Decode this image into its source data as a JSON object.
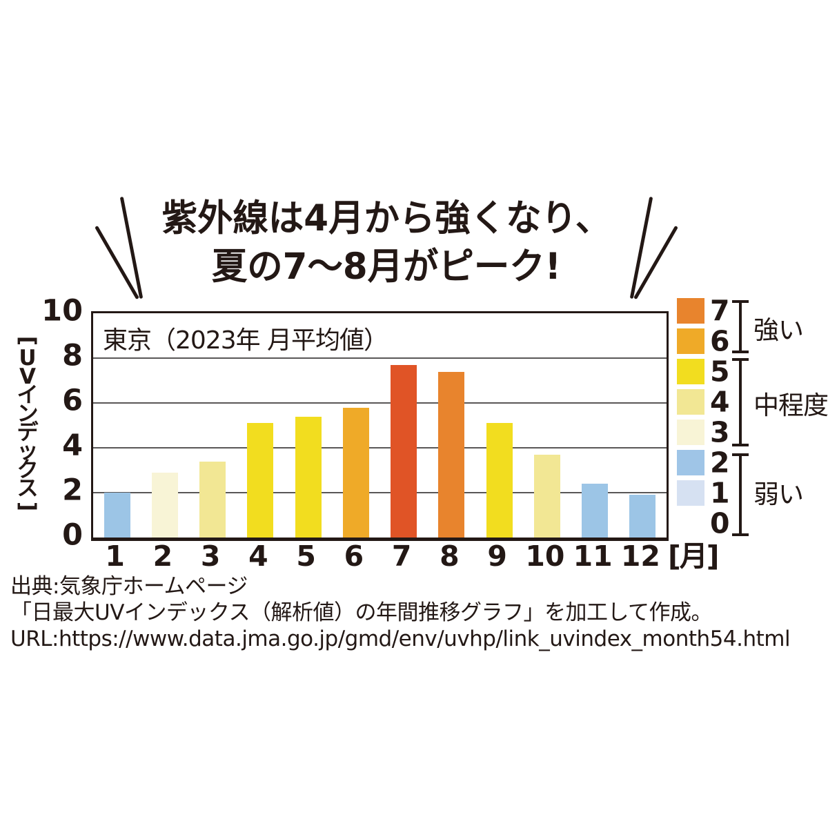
{
  "title": {
    "line1": "紫外線は4月から強くなり、",
    "line2": "夏の7〜8月がピーク!"
  },
  "chart_data": {
    "type": "bar",
    "title": "東京（2023年 月平均値）",
    "categories": [
      "1",
      "2",
      "3",
      "4",
      "5",
      "6",
      "7",
      "8",
      "9",
      "10",
      "11",
      "12"
    ],
    "values": [
      2.0,
      2.9,
      3.4,
      5.1,
      5.4,
      5.8,
      7.7,
      7.4,
      5.1,
      3.7,
      2.4,
      1.9
    ],
    "bar_colors": [
      "#9cc5e6",
      "#f8f4d6",
      "#f2e794",
      "#f2dd1f",
      "#f2dd1f",
      "#efaa28",
      "#e05426",
      "#e8842d",
      "#f2dd1f",
      "#f2e794",
      "#9cc5e6",
      "#9cc5e6"
    ],
    "xlabel": "[月]",
    "ylabel": "[UVインデックス]",
    "ylim": [
      0,
      10
    ],
    "yticks": [
      0,
      2,
      4,
      6,
      8,
      10
    ],
    "grid": true,
    "legend_position": "right"
  },
  "axes": {
    "y_ticks_display": [
      "10",
      "8",
      "6",
      "4",
      "2",
      "0"
    ],
    "x_unit_label": "[月]"
  },
  "legend": {
    "entries": [
      {
        "value": "7",
        "color": "#e8842d"
      },
      {
        "value": "6",
        "color": "#efaa28"
      },
      {
        "value": "5",
        "color": "#f2dd1f"
      },
      {
        "value": "4",
        "color": "#f2e794"
      },
      {
        "value": "3",
        "color": "#f8f4d6"
      },
      {
        "value": "2",
        "color": "#9fc5e7"
      },
      {
        "value": "1",
        "color": "#d6e1f2"
      },
      {
        "value": "0",
        "color": ""
      }
    ],
    "groups": [
      {
        "label": "強い",
        "levels": "6–7"
      },
      {
        "label": "中程度",
        "levels": "3–5"
      },
      {
        "label": "弱い",
        "levels": "0–2"
      }
    ]
  },
  "source": {
    "line1": "出典:気象庁ホームページ",
    "line2": "「日最大UVインデックス（解析値）の年間推移グラフ」を加工して作成。",
    "line3": "URL:https://www.data.jma.go.jp/gmd/env/uvhp/link_uvindex_month54.html"
  },
  "colors": {
    "ink": "#231815",
    "gridline": "#595757",
    "peak_bar": "#e05426"
  }
}
